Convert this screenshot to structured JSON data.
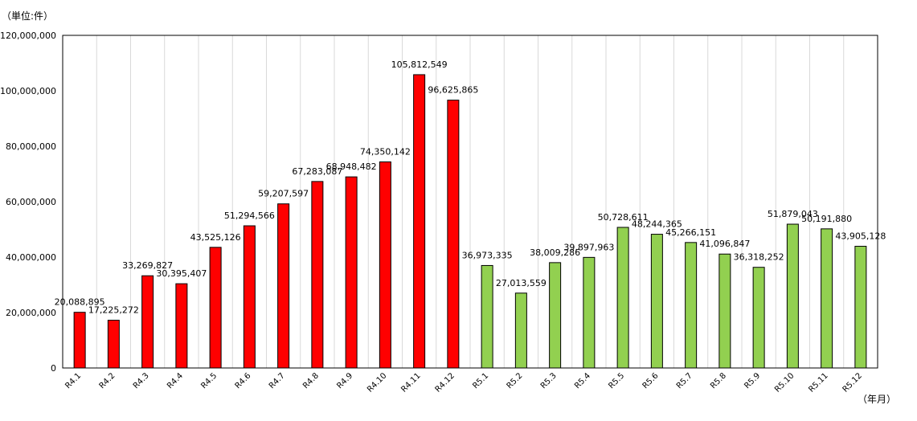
{
  "chart_data": {
    "type": "bar",
    "unit_label": "（単位:件）",
    "x_unit_label": "（年月）",
    "categories": [
      "R4.1",
      "R4.2",
      "R4.3",
      "R4.4",
      "R4.5",
      "R4.6",
      "R4.7",
      "R4.8",
      "R4.9",
      "R4.10",
      "R4.11",
      "R4.12",
      "R5.1",
      "R5.2",
      "R5.3",
      "R5.4",
      "R5.5",
      "R5.6",
      "R5.7",
      "R5.8",
      "R5.9",
      "R5.10",
      "R5.11",
      "R5.12"
    ],
    "values": [
      20088895,
      17225272,
      33269827,
      30395407,
      43525126,
      51294566,
      59207597,
      67283087,
      68948482,
      74350142,
      105812549,
      96625865,
      36973335,
      27013559,
      38009286,
      39897963,
      50728611,
      48244365,
      45266151,
      41096847,
      36318252,
      51879043,
      50191880,
      43905128
    ],
    "data_labels": [
      "20,088,895",
      "17,225,272",
      "33,269,827",
      "30,395,407",
      "43,525,126",
      "51,294,566",
      "59,207,597",
      "67,283,087",
      "68,948,482",
      "74,350,142",
      "105,812,549",
      "96,625,865",
      "36,973,335",
      "27,013,559",
      "38,009,286",
      "39,897,963",
      "50,728,611",
      "48,244,365",
      "45,266,151",
      "41,096,847",
      "36,318,252",
      "51,879,043",
      "50,191,880",
      "43,905,128"
    ],
    "yticks": [
      "0",
      "20,000,000",
      "40,000,000",
      "60,000,000",
      "80,000,000",
      "100,000,000",
      "120,000,000"
    ],
    "ylim": [
      0,
      120000000
    ],
    "grid": "vertical",
    "colors": {
      "R4": "#ff0000",
      "R5": "#92d050",
      "bar_border": "#000000",
      "grid": "#d9d9d9"
    }
  }
}
